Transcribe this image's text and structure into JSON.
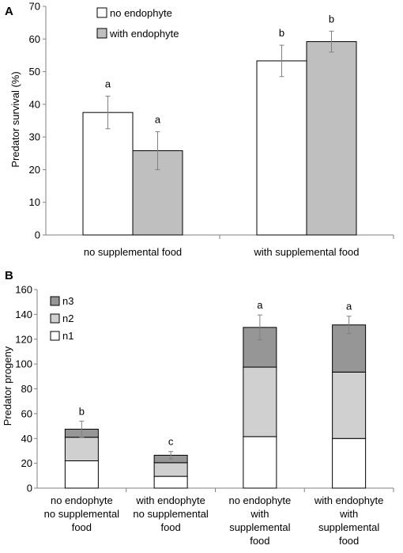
{
  "colors": {
    "no_endophyte": "#ffffff",
    "with_endophyte": "#bfbfbf",
    "n1": "#ffffff",
    "n2": "#d0d0d0",
    "n3": "#969696",
    "axis": "#808080",
    "bar_stroke": "#000000",
    "error_bar": "#808080"
  },
  "chart_data": [
    {
      "panel_label": "A",
      "type": "bar",
      "ylabel": "Predator survival (%)",
      "ylim": [
        0,
        70
      ],
      "ytick_step": 10,
      "yticks": [
        "0",
        "10",
        "20",
        "30",
        "40",
        "50",
        "60",
        "70"
      ],
      "categories": [
        "no supplemental food",
        "with supplemental food"
      ],
      "legend": {
        "placement": "top-left",
        "entries": [
          "no endophyte",
          "with endophyte"
        ]
      },
      "series": [
        {
          "name": "no endophyte",
          "values": [
            37.5,
            53.3
          ],
          "error": [
            5.0,
            4.8
          ],
          "labels": [
            "a",
            "b"
          ]
        },
        {
          "name": "with endophyte",
          "values": [
            25.8,
            59.2
          ],
          "error": [
            5.8,
            3.2
          ],
          "labels": [
            "a",
            "b"
          ]
        }
      ],
      "grid": false
    },
    {
      "panel_label": "B",
      "type": "bar",
      "stacked": true,
      "ylabel": "Predator progeny",
      "ylim": [
        0,
        160
      ],
      "ytick_step": 20,
      "yticks": [
        "0",
        "20",
        "40",
        "60",
        "80",
        "100",
        "120",
        "140",
        "160"
      ],
      "categories": [
        [
          "no endophyte",
          "no supplemental",
          "food"
        ],
        [
          "with endophyte",
          "no supplemental",
          "food"
        ],
        [
          "no endophyte",
          "with",
          "supplemental",
          "food"
        ],
        [
          "with endophyte",
          "with",
          "supplemental",
          "food"
        ]
      ],
      "legend": {
        "placement": "top-left",
        "entries": [
          "n3",
          "n2",
          "n1"
        ]
      },
      "series": [
        {
          "name": "n1",
          "values": [
            22,
            9.5,
            41.5,
            40
          ]
        },
        {
          "name": "n2",
          "values": [
            19,
            11,
            56,
            53.5
          ]
        },
        {
          "name": "n3",
          "values": [
            6.5,
            6,
            32,
            38
          ]
        }
      ],
      "totals": [
        47.5,
        26.5,
        129.5,
        131.5
      ],
      "error": [
        6.5,
        3,
        10,
        7
      ],
      "labels": [
        "b",
        "c",
        "a",
        "a"
      ],
      "grid": false
    }
  ]
}
